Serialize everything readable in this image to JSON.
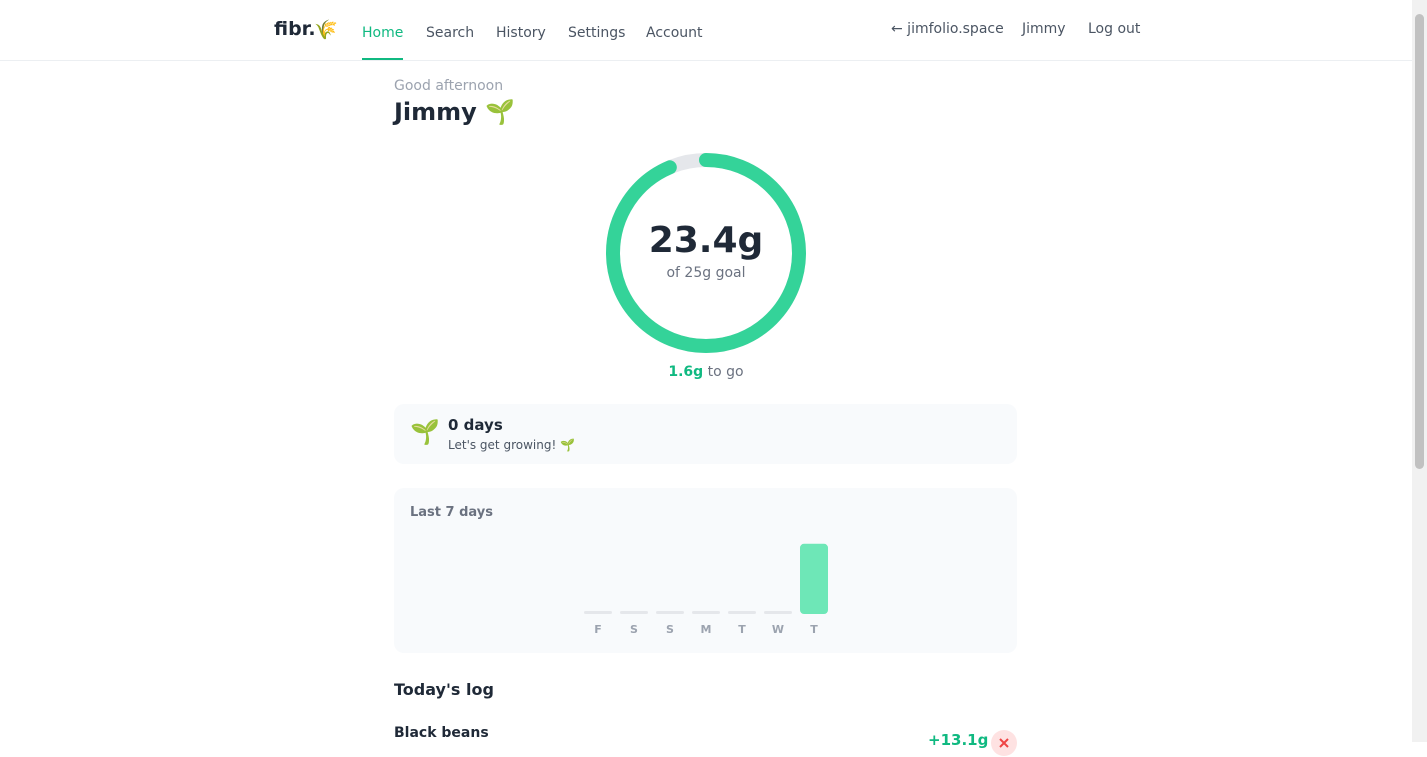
{
  "nav": {
    "logo": "fibr.",
    "logo_icon": "🌾",
    "links": [
      "Home",
      "Search",
      "History",
      "Settings",
      "Account"
    ],
    "active": 0,
    "right": [
      "← jimfolio.space",
      "Jimmy",
      "Log out"
    ]
  },
  "greeting": {
    "subtitle": "Good afternoon",
    "name": "Jimmy 🌱"
  },
  "progress": {
    "value": 23.4,
    "label": "23.4g",
    "goal": 25,
    "goal_label": "of 25g goal",
    "remaining": "1.6g",
    "remaining_suffix": "to go"
  },
  "streak": {
    "icon": "🌱",
    "title": "0 days",
    "message": "Let's get growing! 🌱"
  },
  "week": {
    "title": "Last 7 days",
    "days": [
      "F",
      "S",
      "S",
      "M",
      "T",
      "W",
      "T"
    ],
    "values": [
      0,
      0,
      0,
      0,
      0,
      0,
      23.4
    ]
  },
  "log": {
    "title": "Today's log",
    "items": [
      {
        "name": "Black beans",
        "amount": "+13.1g"
      }
    ]
  }
}
